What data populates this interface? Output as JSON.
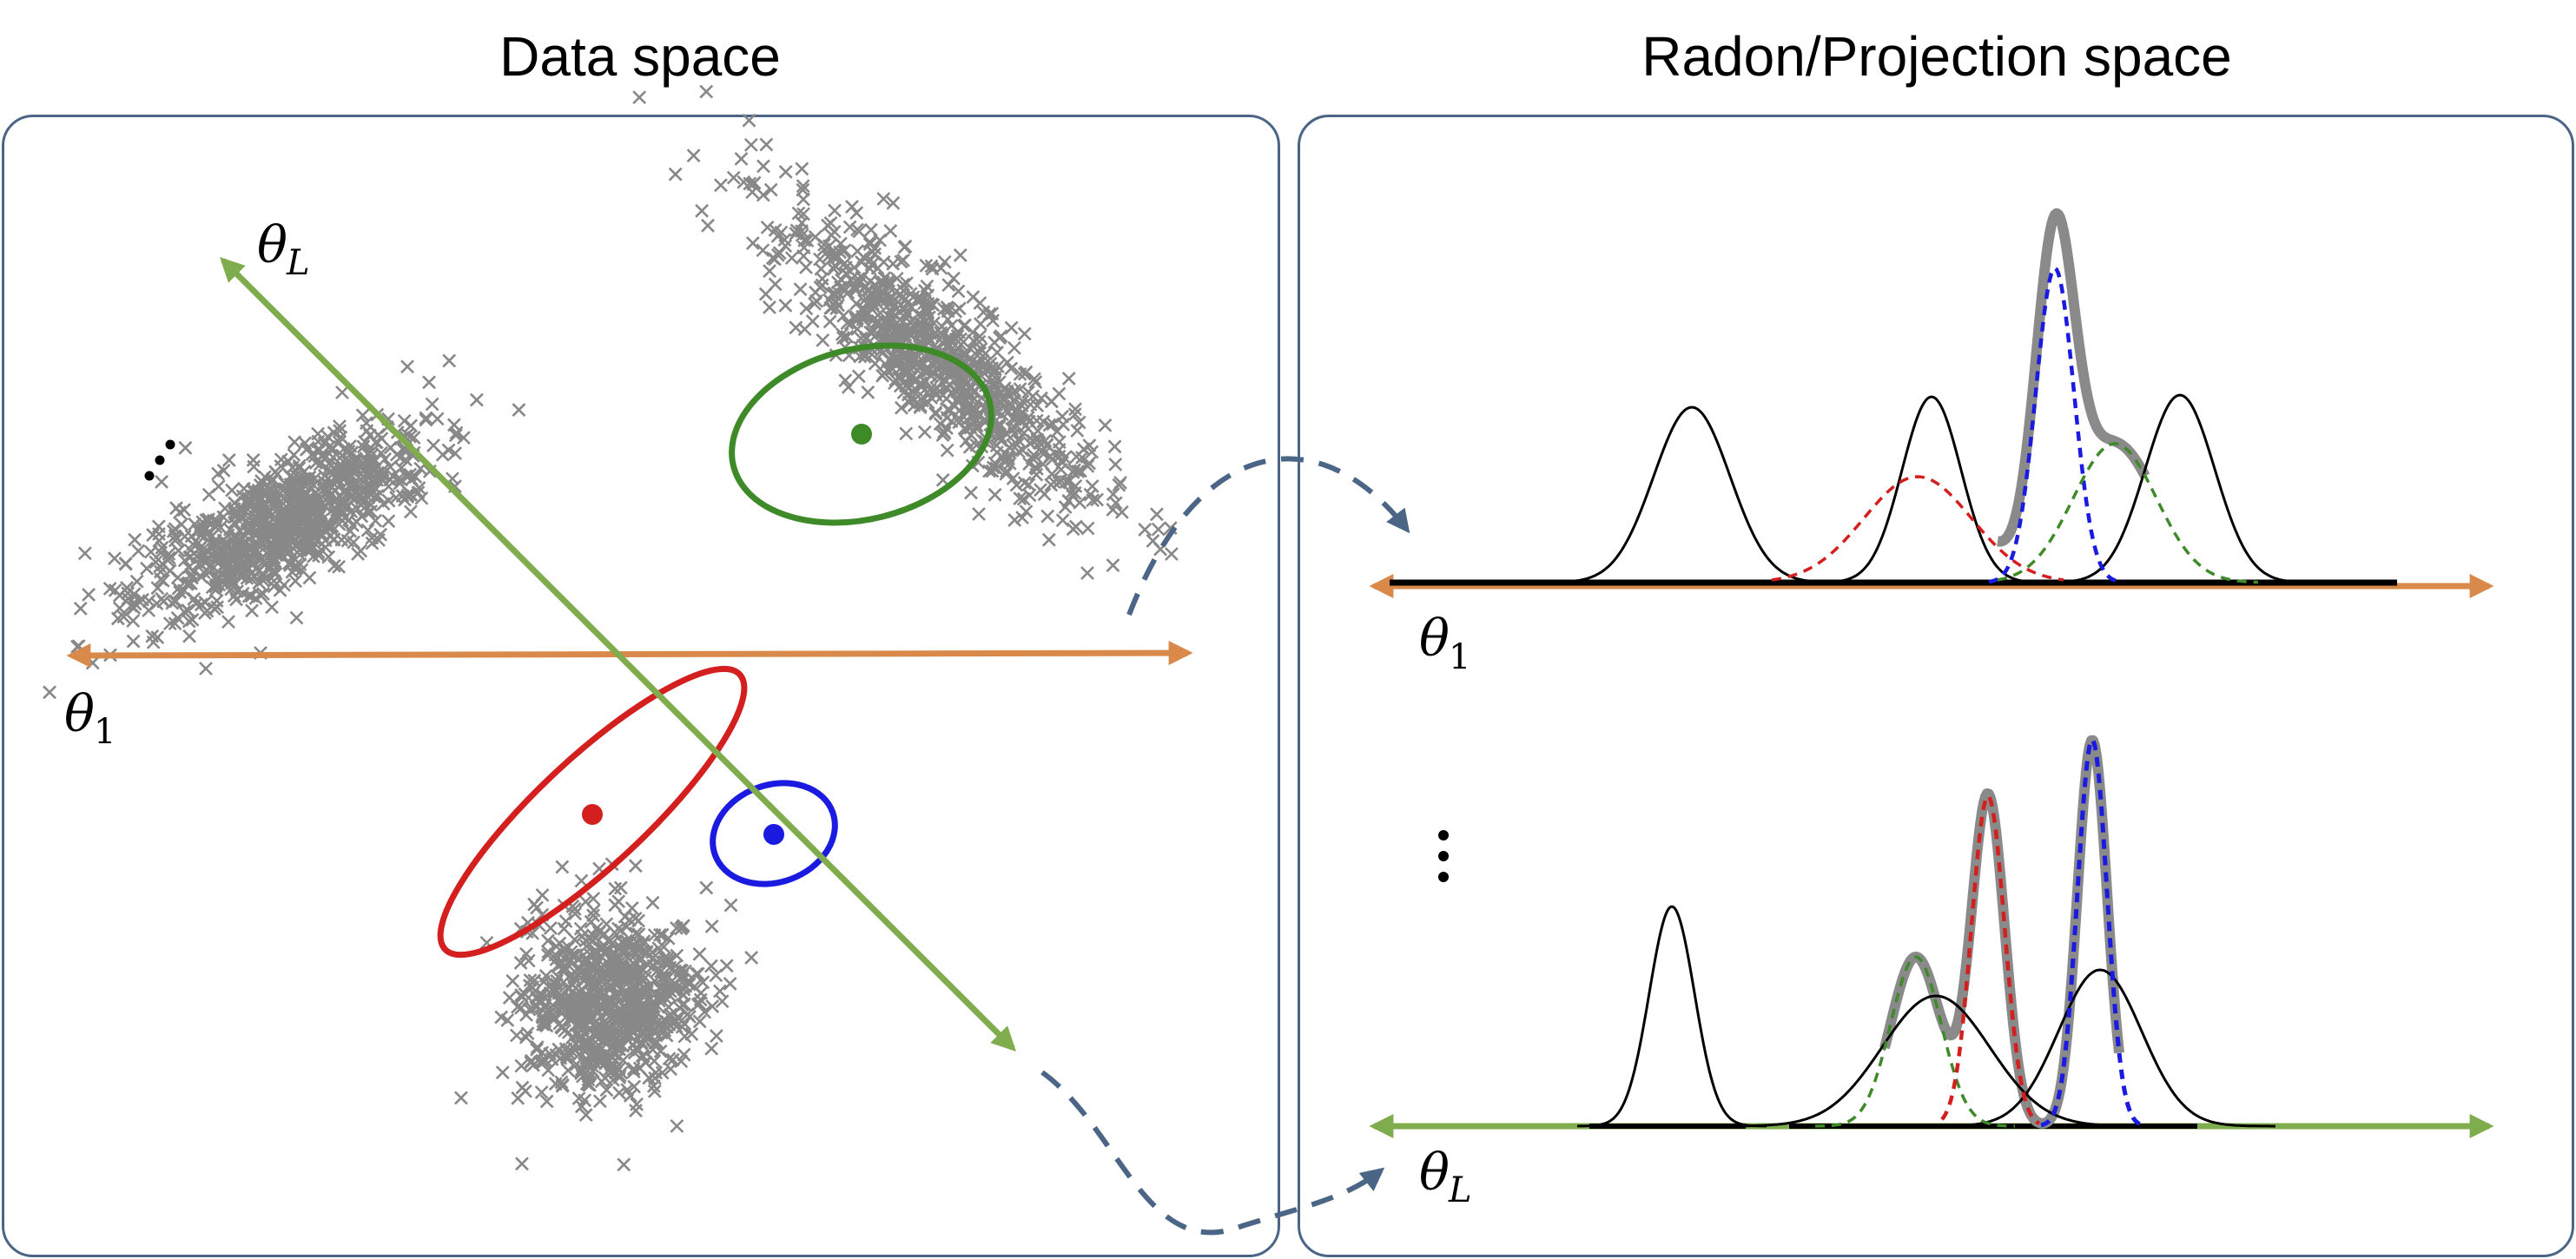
{
  "titles": {
    "data_space": "Data space",
    "radon_space": "Radon/Projection space"
  },
  "labels": {
    "theta_symbol": "θ",
    "sub_L": "L",
    "sub_1": "1"
  },
  "colors": {
    "panel_border": "#4a6585",
    "axis_theta1": "#d9894a",
    "axis_thetaL": "#7fad4e",
    "cluster_points": "#888888",
    "component_red": "#d41f1f",
    "component_blue": "#1a1ae0",
    "component_green": "#3f8a28",
    "mixture_gray": "#8a8a8a",
    "data_curves": "#000000",
    "transfer_arrow": "#4a6585"
  },
  "icons": {
    "cluster_marker": "x-marker",
    "continuation": "ellipsis-dots"
  }
}
